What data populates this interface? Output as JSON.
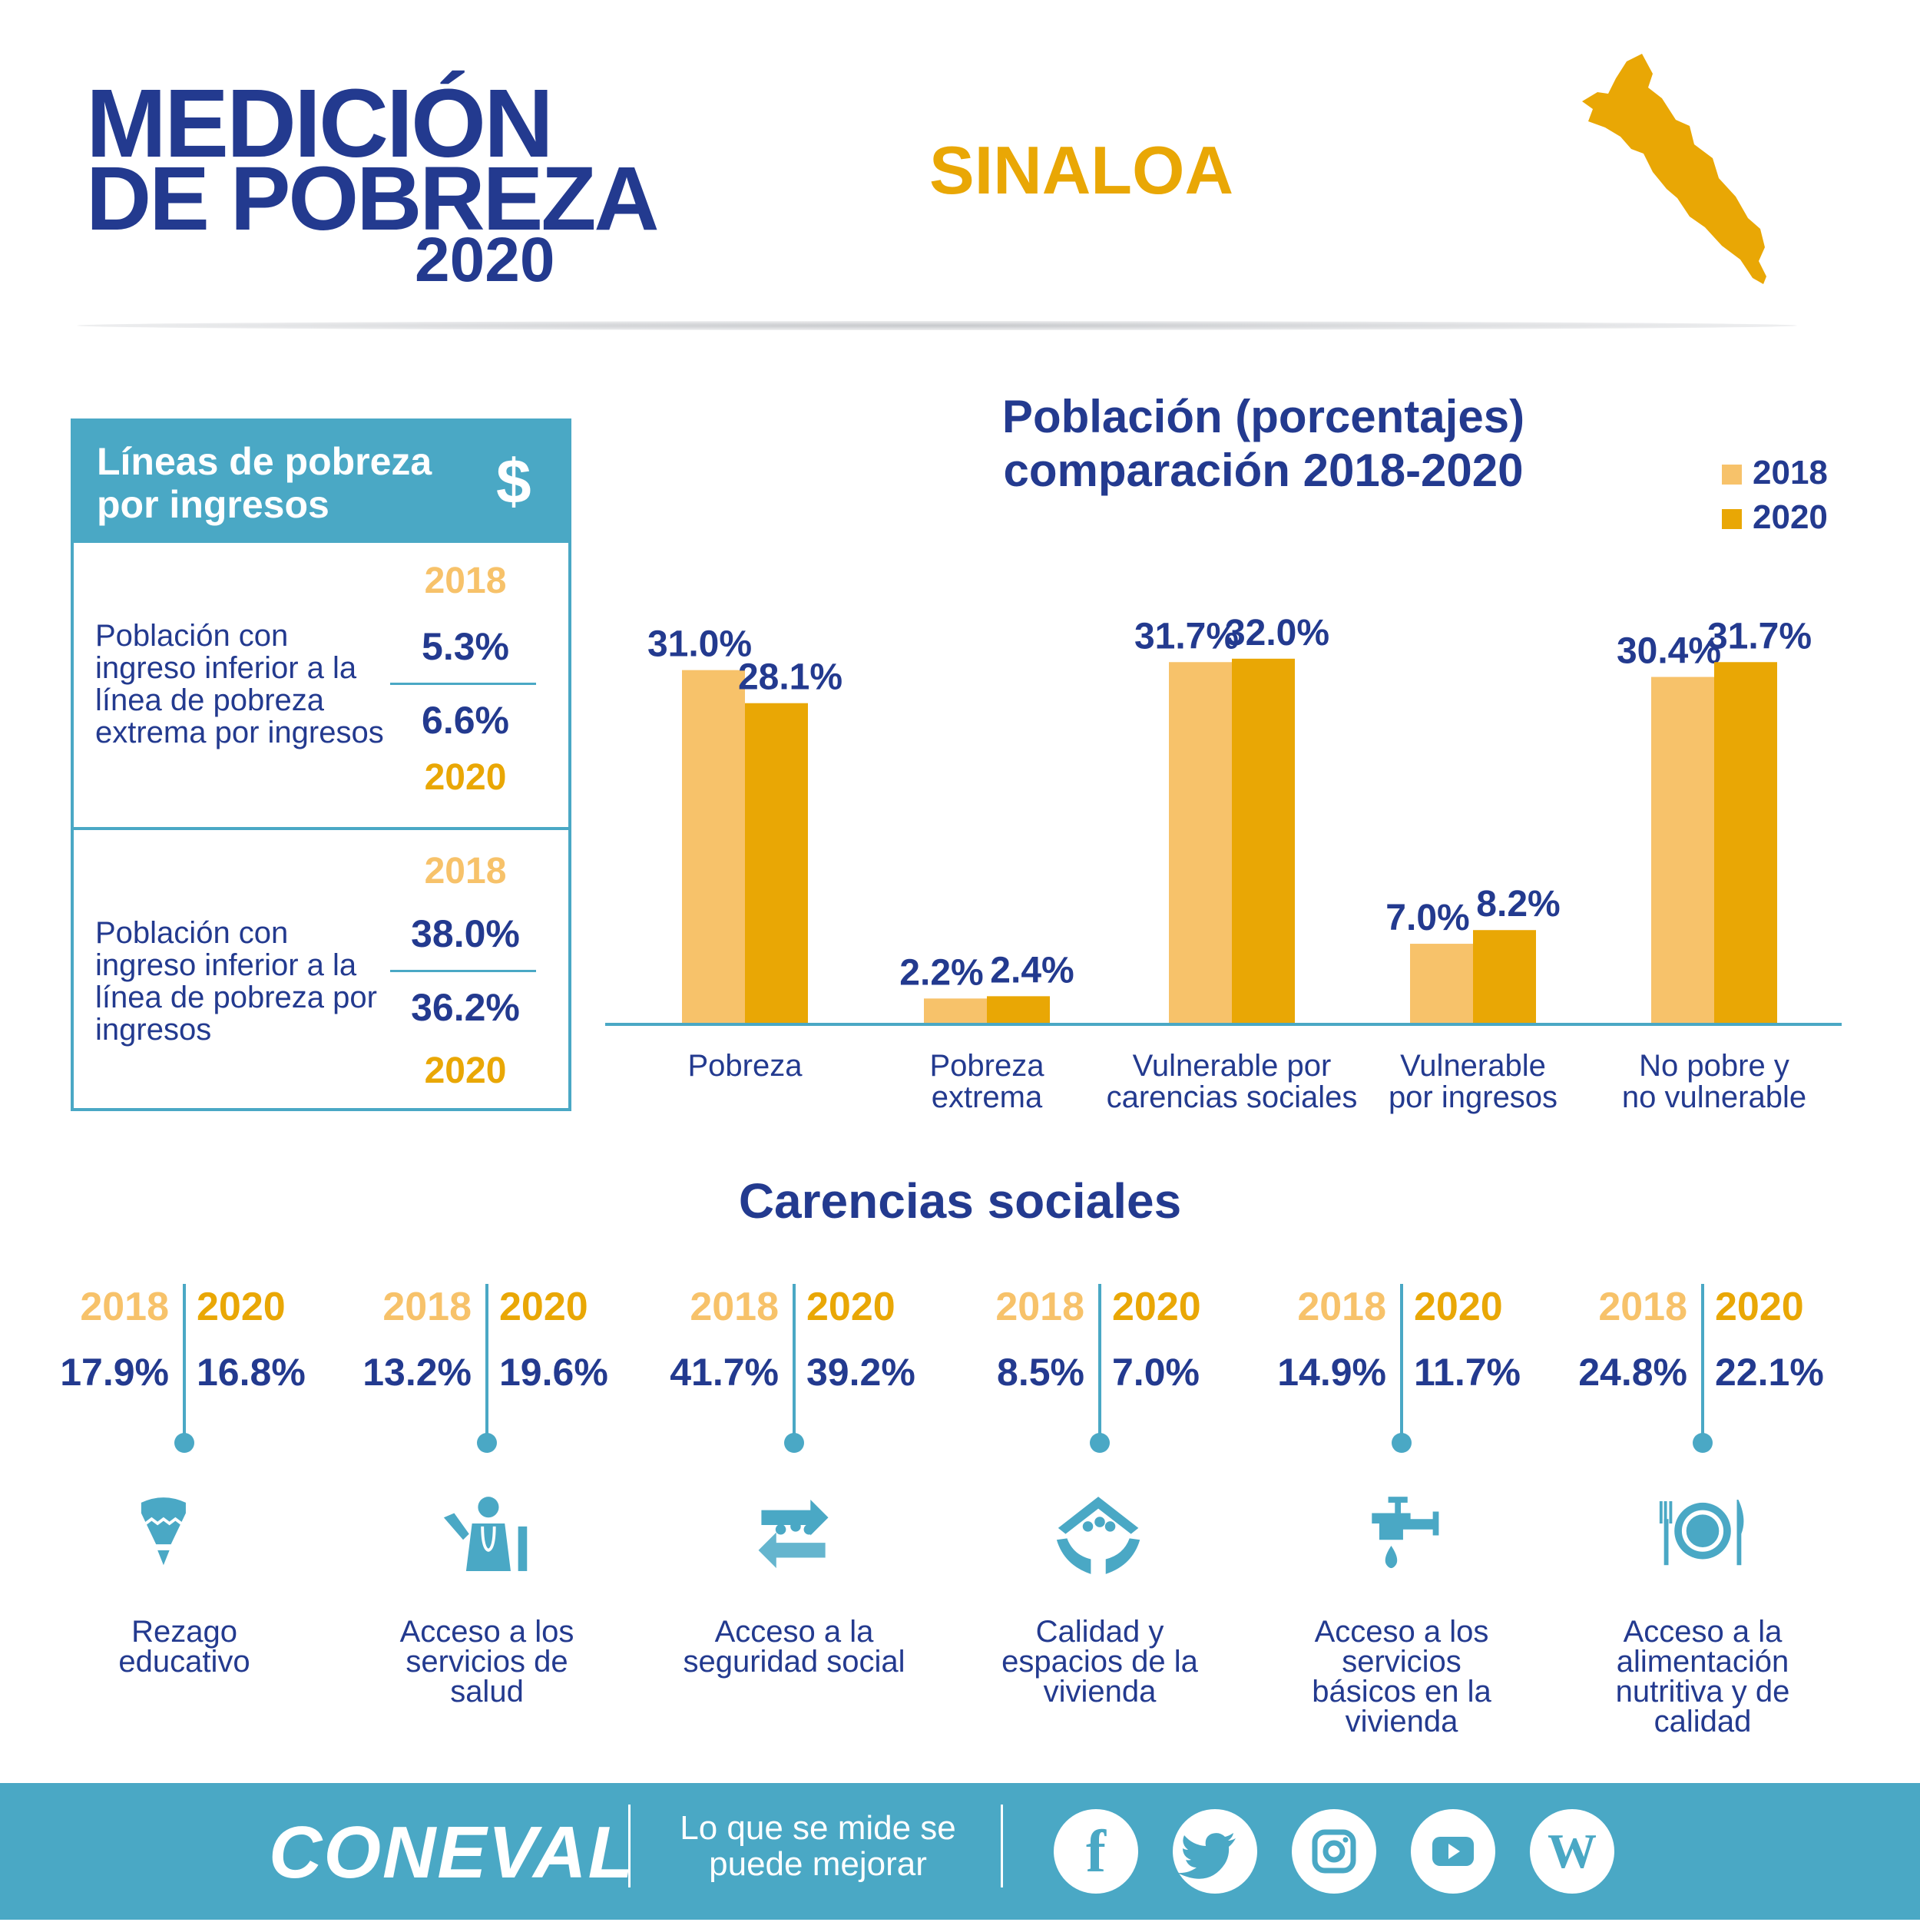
{
  "header": {
    "logo_line1": "MEDICIÓN",
    "logo_line2": "DE POBREZA",
    "logo_line3": "2020",
    "state": "SINALOA"
  },
  "poverty_lines": {
    "title": "Líneas de pobreza por ingresos",
    "icon": "dollar-icon",
    "items": [
      {
        "label": "Población con ingreso inferior a la línea de pobreza extrema por ingresos",
        "year_a": "2018",
        "value_a": "5.3%",
        "value_b": "6.6%",
        "year_b": "2020"
      },
      {
        "label": "Población con ingreso inferior a la línea de pobreza por ingresos",
        "year_a": "2018",
        "value_a": "38.0%",
        "value_b": "36.2%",
        "year_b": "2020"
      }
    ]
  },
  "chart_data": {
    "type": "bar",
    "title": "Población (porcentajes)",
    "subtitle": "comparación 2018-2020",
    "categories": [
      "Pobreza",
      "Pobreza extrema",
      "Vulnerable por carencias sociales",
      "Vulnerable por ingresos",
      "No pobre y no vulnerable"
    ],
    "category_lines": [
      [
        "Pobreza"
      ],
      [
        "Pobreza",
        "extrema"
      ],
      [
        "Vulnerable por",
        "carencias sociales"
      ],
      [
        "Vulnerable",
        "por ingresos"
      ],
      [
        "No pobre y",
        "no vulnerable"
      ]
    ],
    "series": [
      {
        "name": "2018",
        "values": [
          31.0,
          2.2,
          31.7,
          7.0,
          30.4
        ],
        "labels": [
          "31.0%",
          "2.2%",
          "31.7%",
          "7.0%",
          "30.4%"
        ]
      },
      {
        "name": "2020",
        "values": [
          28.1,
          2.4,
          32.0,
          8.2,
          31.7
        ],
        "labels": [
          "28.1%",
          "2.4%",
          "32.0%",
          "8.2%",
          "31.7%"
        ]
      }
    ],
    "legend_position": "top-right",
    "grid": false
  },
  "colors": {
    "navy": "#233a8f",
    "teal": "#4aa8c5",
    "y2018": "#f7c26a",
    "y2020": "#e9a705"
  },
  "carencias": {
    "title": "Carencias sociales",
    "year_a": "2018",
    "year_b": "2020",
    "items": [
      {
        "label": "Rezago educativo",
        "icon": "pencil-icon",
        "value_a": "17.9%",
        "value_b": "16.8%"
      },
      {
        "label": "Acceso a los servicios de salud",
        "icon": "doctor-icon",
        "value_a": "13.2%",
        "value_b": "19.6%"
      },
      {
        "label": "Acceso a la seguridad social",
        "icon": "social-security-icon",
        "value_a": "41.7%",
        "value_b": "39.2%"
      },
      {
        "label": "Calidad y espacios de la vivienda",
        "icon": "house-hands-icon",
        "value_a": "8.5%",
        "value_b": "7.0%"
      },
      {
        "label": "Acceso a los servicios básicos en la vivienda",
        "icon": "faucet-icon",
        "value_a": "14.9%",
        "value_b": "11.7%"
      },
      {
        "label": "Acceso a la alimentación nutritiva y de calidad",
        "icon": "plate-cutlery-icon",
        "value_a": "24.8%",
        "value_b": "22.1%"
      }
    ]
  },
  "footer": {
    "logo": "CONEVAL",
    "slogan": "Lo que se mide se puede mejorar",
    "social": [
      {
        "icon": "facebook-icon",
        "glyph": "f"
      },
      {
        "icon": "twitter-icon",
        "glyph": "t"
      },
      {
        "icon": "instagram-icon",
        "glyph": "◎"
      },
      {
        "icon": "youtube-icon",
        "glyph": "▶"
      },
      {
        "icon": "wordpress-icon",
        "glyph": "W"
      }
    ]
  }
}
